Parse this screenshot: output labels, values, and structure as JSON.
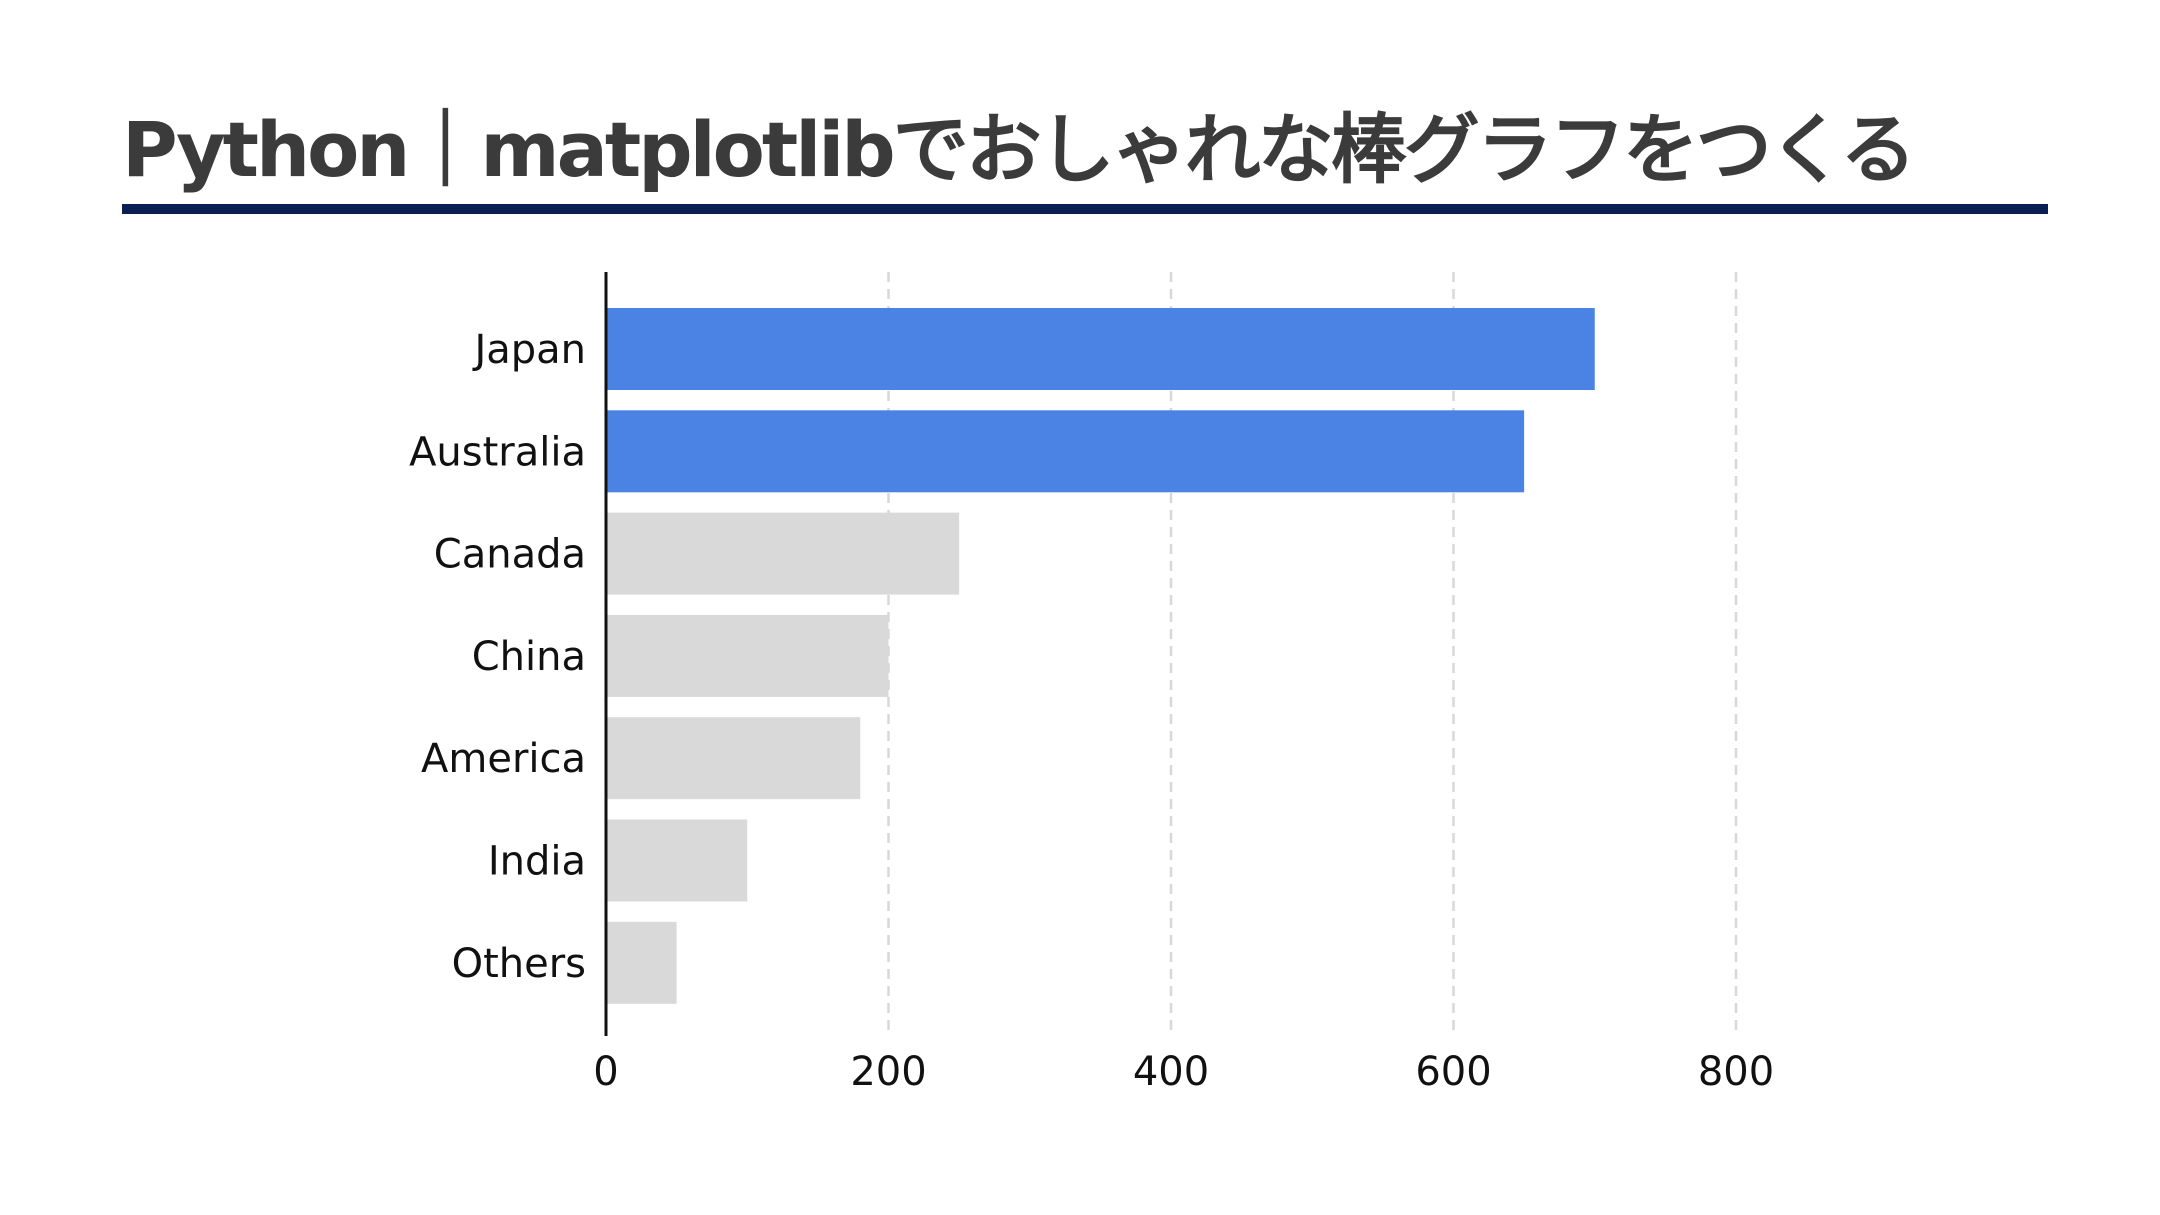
{
  "title": "Python｜matplotlibでおしゃれな棒グラフをつくる",
  "colors": {
    "highlight": "#4a83e4",
    "muted": "#d9d9d9",
    "title_rule": "#0c1f52",
    "title_text": "#3b3b3b",
    "grid": "#d8d8d8"
  },
  "chart_data": {
    "type": "bar",
    "orientation": "horizontal",
    "categories": [
      "Japan",
      "Australia",
      "Canada",
      "China",
      "America",
      "India",
      "Others"
    ],
    "values": [
      700,
      650,
      250,
      200,
      180,
      100,
      50
    ],
    "highlighted": [
      "Japan",
      "Australia"
    ],
    "xticks": [
      0,
      200,
      400,
      600,
      800
    ],
    "xlim": [
      0,
      1000
    ],
    "xlabel": "",
    "ylabel": "",
    "grid": "x-axis dashed"
  }
}
